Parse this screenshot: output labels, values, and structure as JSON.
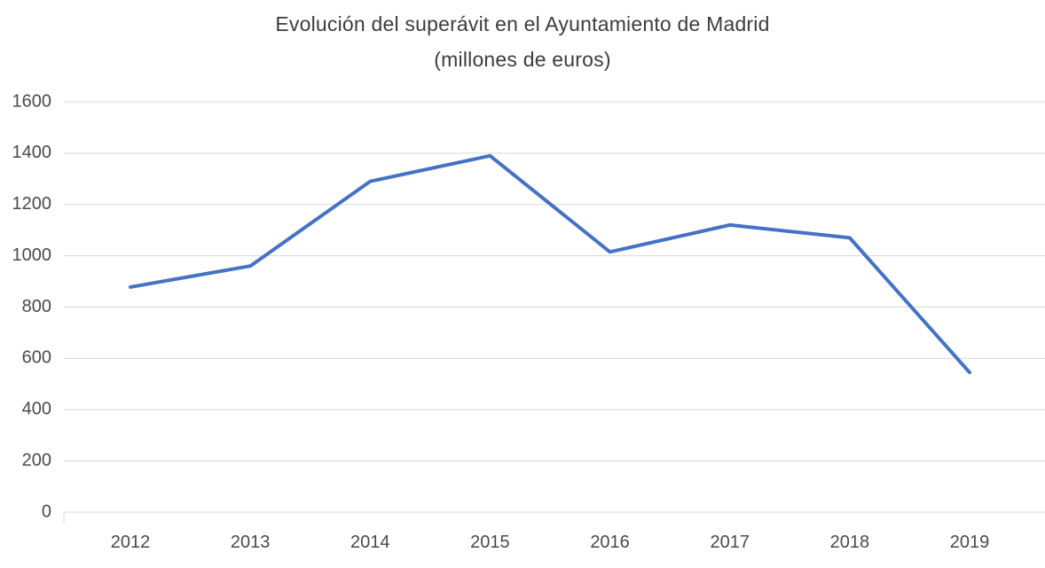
{
  "chart_data": {
    "type": "line",
    "title": "Evolución del superávit en el Ayuntamiento de Madrid",
    "subtitle": "(millones de euros)",
    "categories": [
      "2012",
      "2013",
      "2014",
      "2015",
      "2016",
      "2017",
      "2018",
      "2019"
    ],
    "series": [
      {
        "name": "Superávit (millones de euros)",
        "values": [
          878,
          960,
          1290,
          1390,
          1015,
          1120,
          1070,
          545
        ]
      }
    ],
    "xlabel": "",
    "ylabel": "",
    "ylim": [
      0,
      1600
    ],
    "ytick_step": 200,
    "yticks": [
      0,
      200,
      400,
      600,
      800,
      1000,
      1200,
      1400,
      1600
    ],
    "grid": true,
    "legend": false,
    "colors": {
      "line": "#4472C4",
      "grid": "#d8d8d8",
      "tick_text": "#4a4a4a",
      "title_text": "#3d3d3d"
    }
  }
}
